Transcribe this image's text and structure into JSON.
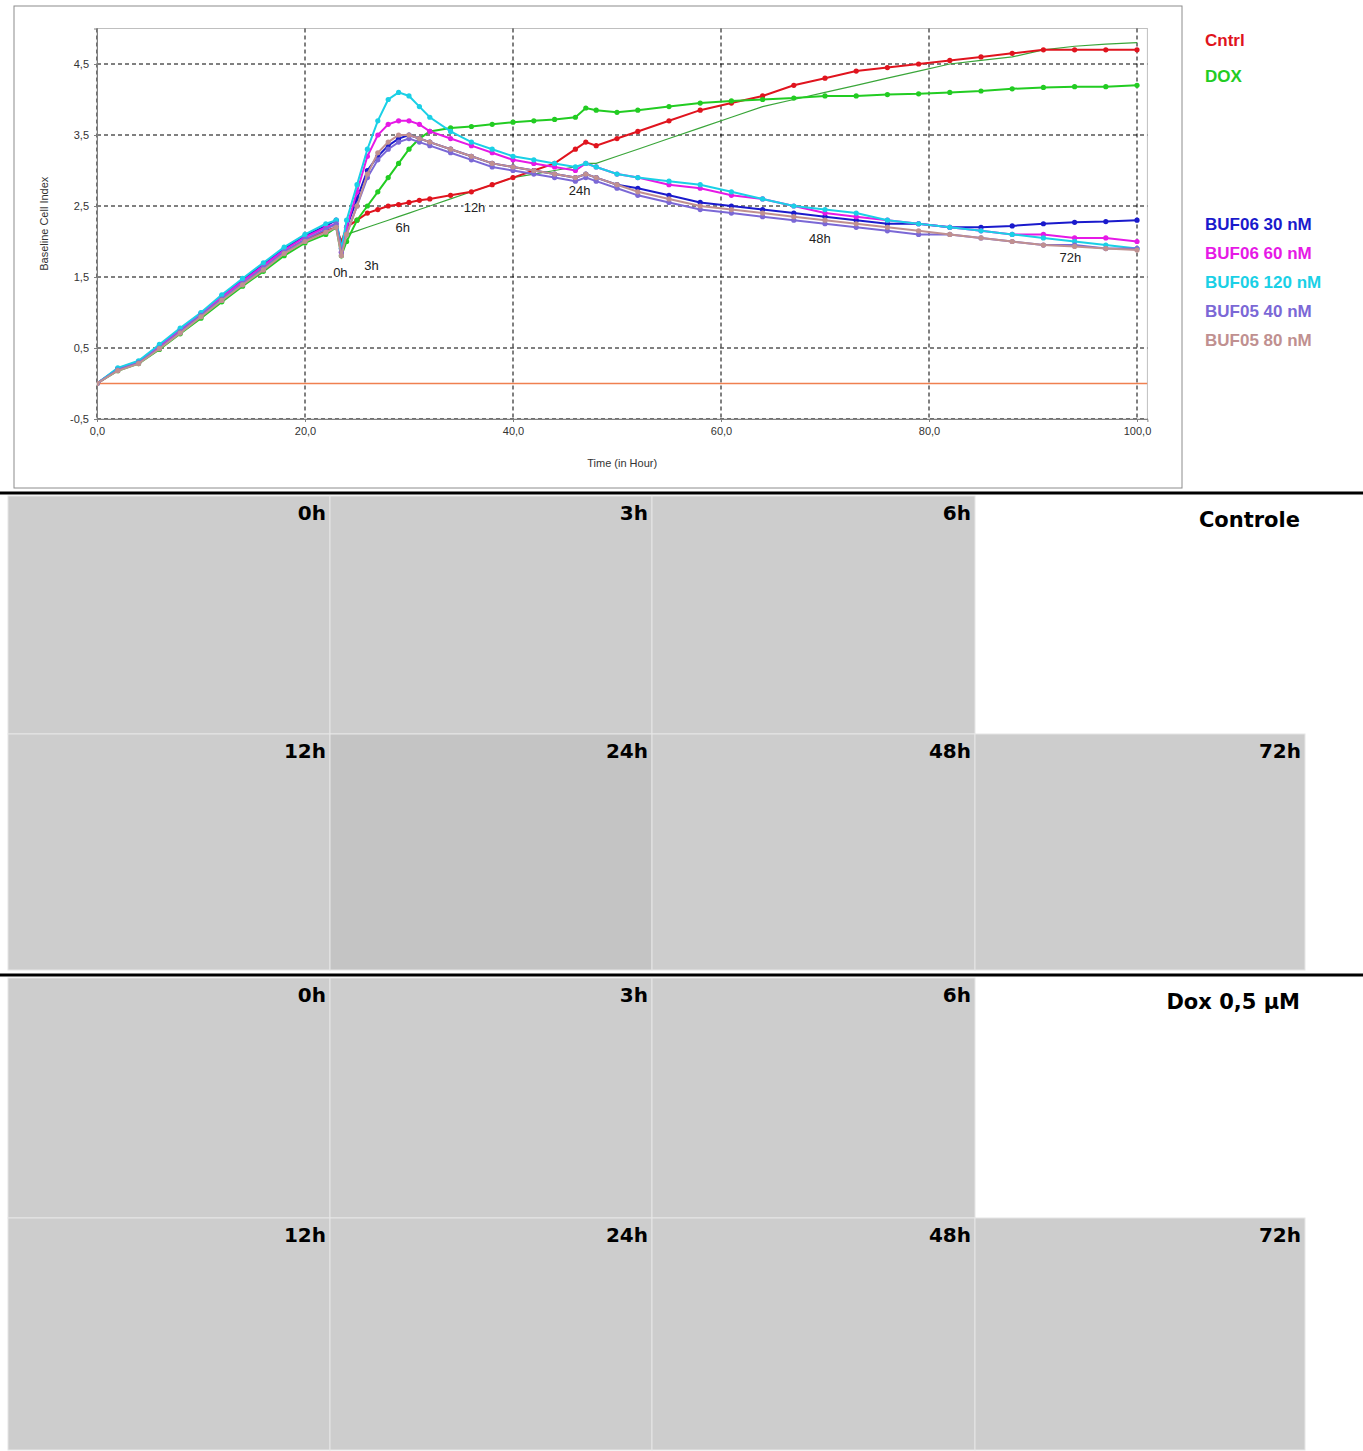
{
  "chart_data": {
    "type": "line",
    "x_label": "Time (in Hour)",
    "y_label": "Baseline Cell Index",
    "x": [
      0,
      2,
      4,
      6,
      8,
      10,
      12,
      14,
      16,
      18,
      20,
      22,
      23,
      23.5,
      24,
      25,
      26,
      27,
      28,
      29,
      30,
      31,
      32,
      34,
      36,
      38,
      40,
      42,
      44,
      46,
      47,
      48,
      50,
      52,
      55,
      58,
      61,
      64,
      67,
      70,
      73,
      76,
      79,
      82,
      85,
      88,
      91,
      94,
      97,
      100
    ],
    "xlim": [
      0,
      101
    ],
    "xticks": [
      {
        "value": 0,
        "label": "0,0"
      },
      {
        "value": 20,
        "label": "20,0"
      },
      {
        "value": 40,
        "label": "40,0"
      },
      {
        "value": 60,
        "label": "60,0"
      },
      {
        "value": 80,
        "label": "80,0"
      },
      {
        "value": 100,
        "label": "100,0"
      }
    ],
    "ylim": [
      -0.5,
      5
    ],
    "yticks": [
      {
        "value": -0.5,
        "label": "-0,5"
      },
      {
        "value": 0.5,
        "label": "0,5"
      },
      {
        "value": 1.5,
        "label": "1,5"
      },
      {
        "value": 2.5,
        "label": "2,5"
      },
      {
        "value": 3.5,
        "label": "3,5"
      },
      {
        "value": 4.5,
        "label": "4,5"
      }
    ],
    "grid": true,
    "legend": "right",
    "hlines": [
      {
        "y": 0,
        "color": "#f08050"
      }
    ],
    "annotations": [
      {
        "text": "0h",
        "x": 23.4,
        "y": 1.5
      },
      {
        "text": "3h",
        "x": 26.4,
        "y": 1.6
      },
      {
        "text": "6h",
        "x": 29.4,
        "y": 2.13
      },
      {
        "text": "12h",
        "x": 36.3,
        "y": 2.42
      },
      {
        "text": "24h",
        "x": 46.4,
        "y": 2.65
      },
      {
        "text": "48h",
        "x": 69.5,
        "y": 1.98
      },
      {
        "text": "72h",
        "x": 93.6,
        "y": 1.71
      }
    ],
    "series": [
      {
        "name": "Cntrl",
        "color": "#e0141e",
        "marker": "circle",
        "line_style": "solid",
        "values": [
          0,
          0.2,
          0.3,
          0.5,
          0.72,
          0.95,
          1.18,
          1.4,
          1.62,
          1.85,
          2.02,
          2.15,
          2.2,
          2.0,
          2.2,
          2.3,
          2.4,
          2.45,
          2.5,
          2.52,
          2.55,
          2.58,
          2.6,
          2.65,
          2.7,
          2.8,
          2.9,
          3.0,
          3.1,
          3.3,
          3.4,
          3.35,
          3.45,
          3.55,
          3.7,
          3.85,
          3.95,
          4.05,
          4.2,
          4.3,
          4.4,
          4.45,
          4.5,
          4.55,
          4.6,
          4.65,
          4.7,
          4.7,
          4.7,
          4.7
        ]
      },
      {
        "name": "DOX",
        "color": "#22cc22",
        "marker": "circle",
        "line_style": "solid",
        "values": [
          0,
          0.18,
          0.28,
          0.48,
          0.7,
          0.92,
          1.15,
          1.37,
          1.58,
          1.8,
          1.98,
          2.1,
          2.2,
          1.8,
          2.0,
          2.3,
          2.5,
          2.7,
          2.9,
          3.1,
          3.3,
          3.45,
          3.55,
          3.6,
          3.62,
          3.65,
          3.68,
          3.7,
          3.72,
          3.75,
          3.88,
          3.85,
          3.82,
          3.85,
          3.9,
          3.95,
          3.98,
          4.0,
          4.02,
          4.05,
          4.05,
          4.07,
          4.08,
          4.1,
          4.12,
          4.15,
          4.17,
          4.18,
          4.18,
          4.2
        ]
      },
      {
        "name": "BUF06 30 nM",
        "color": "#1a1acc",
        "marker": "circle",
        "line_style": "solid",
        "values": [
          0,
          0.21,
          0.31,
          0.53,
          0.76,
          0.99,
          1.23,
          1.46,
          1.68,
          1.9,
          2.08,
          2.22,
          2.3,
          1.9,
          2.2,
          2.6,
          3.0,
          3.2,
          3.35,
          3.45,
          3.5,
          3.45,
          3.4,
          3.3,
          3.2,
          3.1,
          3.05,
          3.0,
          2.95,
          2.9,
          2.95,
          2.9,
          2.8,
          2.75,
          2.65,
          2.55,
          2.5,
          2.45,
          2.4,
          2.35,
          2.3,
          2.25,
          2.25,
          2.2,
          2.2,
          2.22,
          2.25,
          2.27,
          2.28,
          2.3
        ]
      },
      {
        "name": "BUF06 60 nM",
        "color": "#e619e6",
        "marker": "circle",
        "line_style": "solid",
        "values": [
          0,
          0.2,
          0.31,
          0.52,
          0.75,
          0.98,
          1.22,
          1.44,
          1.66,
          1.88,
          2.06,
          2.2,
          2.25,
          1.85,
          2.2,
          2.7,
          3.2,
          3.5,
          3.65,
          3.7,
          3.7,
          3.65,
          3.55,
          3.45,
          3.35,
          3.25,
          3.15,
          3.1,
          3.05,
          3.0,
          3.1,
          3.05,
          2.95,
          2.9,
          2.8,
          2.75,
          2.65,
          2.6,
          2.5,
          2.4,
          2.35,
          2.3,
          2.25,
          2.2,
          2.15,
          2.1,
          2.1,
          2.05,
          2.05,
          2.0
        ]
      },
      {
        "name": "BUF06 120 nM",
        "color": "#1ad0e6",
        "marker": "circle",
        "line_style": "solid",
        "values": [
          0,
          0.22,
          0.32,
          0.55,
          0.78,
          1.0,
          1.25,
          1.48,
          1.7,
          1.92,
          2.1,
          2.25,
          2.3,
          1.9,
          2.3,
          2.8,
          3.3,
          3.7,
          4.0,
          4.1,
          4.05,
          3.9,
          3.75,
          3.55,
          3.4,
          3.3,
          3.2,
          3.15,
          3.1,
          3.05,
          3.1,
          3.05,
          2.95,
          2.9,
          2.85,
          2.8,
          2.7,
          2.6,
          2.5,
          2.45,
          2.4,
          2.3,
          2.25,
          2.2,
          2.15,
          2.1,
          2.05,
          2.0,
          1.95,
          1.9
        ]
      },
      {
        "name": "BUF05 40 nM",
        "color": "#7b68d6",
        "marker": "circle",
        "line_style": "solid",
        "values": [
          0,
          0.19,
          0.29,
          0.5,
          0.73,
          0.96,
          1.19,
          1.41,
          1.63,
          1.85,
          2.03,
          2.17,
          2.25,
          1.85,
          2.1,
          2.5,
          2.9,
          3.15,
          3.3,
          3.4,
          3.45,
          3.4,
          3.35,
          3.25,
          3.15,
          3.05,
          3.0,
          2.95,
          2.9,
          2.85,
          2.9,
          2.85,
          2.75,
          2.65,
          2.55,
          2.45,
          2.4,
          2.35,
          2.3,
          2.25,
          2.2,
          2.15,
          2.1,
          2.1,
          2.05,
          2.0,
          1.95,
          1.95,
          1.9,
          1.9
        ]
      },
      {
        "name": "BUF05 80 nM",
        "color": "#c09090",
        "marker": "circle",
        "line_style": "solid",
        "values": [
          0,
          0.18,
          0.28,
          0.49,
          0.71,
          0.94,
          1.17,
          1.39,
          1.6,
          1.83,
          2.0,
          2.13,
          2.2,
          1.8,
          2.1,
          2.5,
          2.95,
          3.25,
          3.4,
          3.5,
          3.5,
          3.45,
          3.4,
          3.3,
          3.2,
          3.1,
          3.05,
          3.0,
          2.95,
          2.9,
          2.95,
          2.9,
          2.8,
          2.7,
          2.6,
          2.5,
          2.45,
          2.4,
          2.35,
          2.3,
          2.25,
          2.2,
          2.15,
          2.1,
          2.05,
          2.0,
          1.95,
          1.93,
          1.9,
          1.88
        ]
      },
      {
        "color": "#3aa63a",
        "marker": "none",
        "line_style": "solid",
        "values": [
          null,
          null,
          null,
          null,
          null,
          null,
          null,
          null,
          null,
          null,
          null,
          null,
          null,
          null,
          2.1,
          2.15,
          2.2,
          2.25,
          2.3,
          2.35,
          2.4,
          2.45,
          2.5,
          2.6,
          2.7,
          2.8,
          2.9,
          2.95,
          3.0,
          3.05,
          3.1,
          3.1,
          3.2,
          3.3,
          3.45,
          3.6,
          3.75,
          3.9,
          4.0,
          4.1,
          4.2,
          4.3,
          4.4,
          4.5,
          4.55,
          4.6,
          4.7,
          4.75,
          4.78,
          4.8
        ]
      }
    ]
  },
  "figure_panels": [
    {
      "title": "Controle",
      "rows": [
        [
          "0h",
          "3h",
          "6h"
        ],
        [
          "12h",
          "24h",
          "48h",
          "72h"
        ]
      ]
    },
    {
      "title": "Dox 0,5 µM",
      "rows": [
        [
          "0h",
          "3h",
          "6h"
        ],
        [
          "12h",
          "24h",
          "48h",
          "72h"
        ]
      ]
    }
  ]
}
